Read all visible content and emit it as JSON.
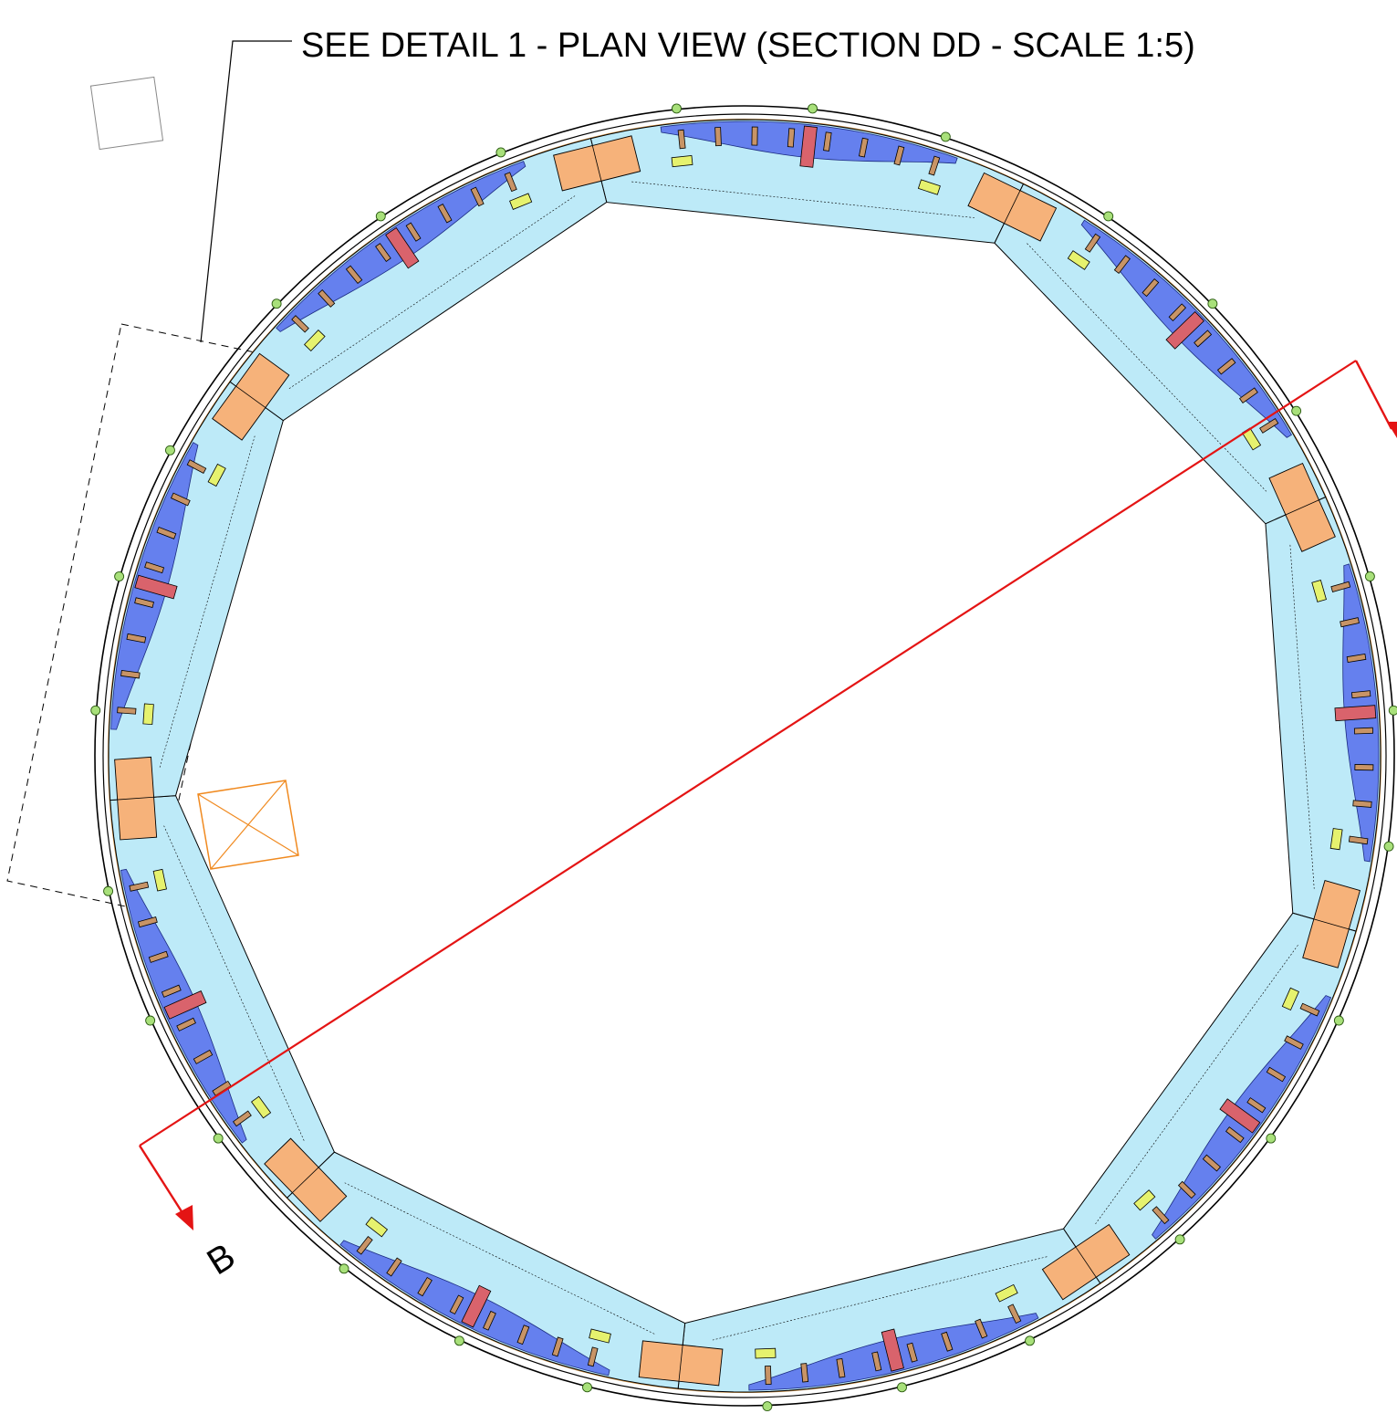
{
  "drawing": {
    "callout_text": "SEE DETAIL 1 - PLAN VIEW (SECTION DD - SCALE 1:5)",
    "section_marker": "B",
    "polygon_sides": 9,
    "colors": {
      "section_line": "#e41414",
      "inner_panel": "#bdeaf8",
      "outer_panel": "#6580ee",
      "joint_block": "#f6b27a",
      "spacer": "#c89466",
      "clamp": "#d9636c",
      "pad": "#e6f26e",
      "bolt": "#a8e07a",
      "marker": "#f08a20"
    }
  }
}
